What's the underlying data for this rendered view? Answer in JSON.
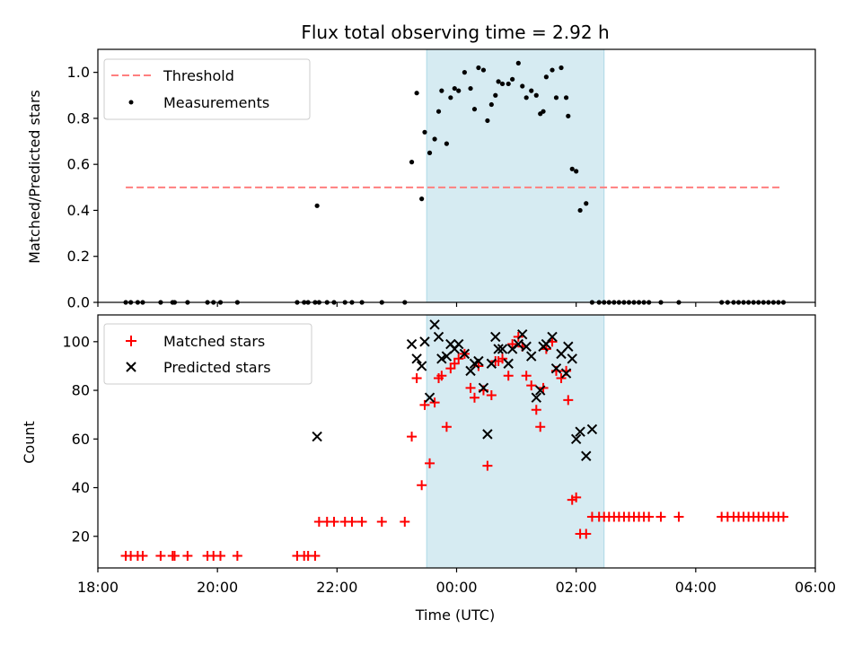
{
  "chart_data": [
    {
      "type": "scatter",
      "title": "Flux total observing time = 2.92 h",
      "ylabel": "Matched/Predicted stars",
      "xlim": [
        "18:00",
        "06:00"
      ],
      "ylim": [
        0,
        1.1
      ],
      "yticks": [
        "0.0",
        "0.2",
        "0.4",
        "0.6",
        "0.8",
        "1.0"
      ],
      "grid": false,
      "legend_position": "top-left",
      "highlight_span": {
        "start": "23:30",
        "end": "02:28",
        "color": "#add8e6"
      },
      "series": [
        {
          "name": "Threshold",
          "style": "dashed-line",
          "color": "#ff7f7f",
          "points": [
            [
              "18:28",
              0.5
            ],
            [
              "05:26",
              0.5
            ]
          ]
        },
        {
          "name": "Measurements",
          "style": "dot",
          "color": "#000000",
          "points": [
            [
              "18:28",
              0
            ],
            [
              "18:33",
              0
            ],
            [
              "18:40",
              0
            ],
            [
              "18:45",
              0
            ],
            [
              "19:03",
              0
            ],
            [
              "19:15",
              0
            ],
            [
              "19:17",
              0
            ],
            [
              "19:30",
              0
            ],
            [
              "19:50",
              0
            ],
            [
              "19:56",
              0
            ],
            [
              "20:03",
              0
            ],
            [
              "20:20",
              0
            ],
            [
              "21:20",
              0
            ],
            [
              "21:27",
              0
            ],
            [
              "21:31",
              0
            ],
            [
              "21:38",
              0
            ],
            [
              "21:42",
              0
            ],
            [
              "21:50",
              0
            ],
            [
              "21:57",
              0
            ],
            [
              "22:08",
              0
            ],
            [
              "22:15",
              0
            ],
            [
              "22:25",
              0
            ],
            [
              "22:45",
              0
            ],
            [
              "23:08",
              0
            ],
            [
              "21:40",
              0.42
            ],
            [
              "23:15",
              0.61
            ],
            [
              "23:20",
              0.91
            ],
            [
              "23:25",
              0.45
            ],
            [
              "23:28",
              0.74
            ],
            [
              "23:33",
              0.65
            ],
            [
              "23:38",
              0.71
            ],
            [
              "23:42",
              0.83
            ],
            [
              "23:45",
              0.92
            ],
            [
              "23:50",
              0.69
            ],
            [
              "23:54",
              0.89
            ],
            [
              "23:58",
              0.93
            ],
            [
              "00:02",
              0.92
            ],
            [
              "00:08",
              1.0
            ],
            [
              "00:14",
              0.93
            ],
            [
              "00:18",
              0.84
            ],
            [
              "00:22",
              1.02
            ],
            [
              "00:27",
              1.01
            ],
            [
              "00:31",
              0.79
            ],
            [
              "00:35",
              0.86
            ],
            [
              "00:39",
              0.9
            ],
            [
              "00:42",
              0.96
            ],
            [
              "00:46",
              0.95
            ],
            [
              "00:52",
              0.95
            ],
            [
              "00:56",
              0.97
            ],
            [
              "01:02",
              1.04
            ],
            [
              "01:06",
              0.94
            ],
            [
              "01:10",
              0.89
            ],
            [
              "01:15",
              0.92
            ],
            [
              "01:20",
              0.9
            ],
            [
              "01:24",
              0.82
            ],
            [
              "01:27",
              0.83
            ],
            [
              "01:30",
              0.98
            ],
            [
              "01:36",
              1.01
            ],
            [
              "01:40",
              0.89
            ],
            [
              "01:45",
              1.02
            ],
            [
              "01:50",
              0.89
            ],
            [
              "01:52",
              0.81
            ],
            [
              "01:56",
              0.58
            ],
            [
              "02:00",
              0.57
            ],
            [
              "02:04",
              0.4
            ],
            [
              "02:10",
              0.43
            ],
            [
              "02:16",
              0
            ],
            [
              "02:23",
              0
            ],
            [
              "02:28",
              0
            ],
            [
              "02:33",
              0
            ],
            [
              "02:38",
              0
            ],
            [
              "02:43",
              0
            ],
            [
              "02:48",
              0
            ],
            [
              "02:53",
              0
            ],
            [
              "02:58",
              0
            ],
            [
              "03:03",
              0
            ],
            [
              "03:08",
              0
            ],
            [
              "03:13",
              0
            ],
            [
              "03:25",
              0
            ],
            [
              "03:43",
              0
            ],
            [
              "04:26",
              0
            ],
            [
              "04:32",
              0
            ],
            [
              "04:38",
              0
            ],
            [
              "04:43",
              0
            ],
            [
              "04:48",
              0
            ],
            [
              "04:53",
              0
            ],
            [
              "04:58",
              0
            ],
            [
              "05:03",
              0
            ],
            [
              "05:08",
              0
            ],
            [
              "05:13",
              0
            ],
            [
              "05:18",
              0
            ],
            [
              "05:23",
              0
            ],
            [
              "05:28",
              0
            ]
          ]
        }
      ]
    },
    {
      "type": "scatter",
      "title": "",
      "xlabel": "Time (UTC)",
      "ylabel": "Count",
      "xlim": [
        "18:00",
        "06:00"
      ],
      "xticks": [
        "18:00",
        "20:00",
        "22:00",
        "00:00",
        "02:00",
        "04:00",
        "06:00"
      ],
      "ylim": [
        7,
        111
      ],
      "yticks": [
        "20",
        "40",
        "60",
        "80",
        "100"
      ],
      "grid": false,
      "legend_position": "top-left",
      "highlight_span": {
        "start": "23:30",
        "end": "02:28",
        "color": "#add8e6"
      },
      "series": [
        {
          "name": "Matched stars",
          "style": "plus",
          "color": "#ff0000",
          "points": [
            [
              "18:28",
              12
            ],
            [
              "18:33",
              12
            ],
            [
              "18:40",
              12
            ],
            [
              "18:45",
              12
            ],
            [
              "19:03",
              12
            ],
            [
              "19:15",
              12
            ],
            [
              "19:17",
              12
            ],
            [
              "19:30",
              12
            ],
            [
              "19:50",
              12
            ],
            [
              "19:56",
              12
            ],
            [
              "20:03",
              12
            ],
            [
              "20:20",
              12
            ],
            [
              "21:20",
              12
            ],
            [
              "21:27",
              12
            ],
            [
              "21:31",
              12
            ],
            [
              "21:38",
              12
            ],
            [
              "21:42",
              26
            ],
            [
              "21:50",
              26
            ],
            [
              "21:57",
              26
            ],
            [
              "22:08",
              26
            ],
            [
              "22:15",
              26
            ],
            [
              "22:25",
              26
            ],
            [
              "22:45",
              26
            ],
            [
              "23:08",
              26
            ],
            [
              "23:15",
              61
            ],
            [
              "23:20",
              85
            ],
            [
              "23:25",
              41
            ],
            [
              "23:28",
              74
            ],
            [
              "23:33",
              50
            ],
            [
              "23:38",
              75
            ],
            [
              "23:42",
              85
            ],
            [
              "23:45",
              86
            ],
            [
              "23:50",
              65
            ],
            [
              "23:54",
              89
            ],
            [
              "23:58",
              91
            ],
            [
              "00:02",
              93
            ],
            [
              "00:08",
              95
            ],
            [
              "00:14",
              81
            ],
            [
              "00:18",
              77
            ],
            [
              "00:22",
              90
            ],
            [
              "00:27",
              80
            ],
            [
              "00:31",
              49
            ],
            [
              "00:35",
              78
            ],
            [
              "00:39",
              92
            ],
            [
              "00:42",
              92
            ],
            [
              "00:46",
              93
            ],
            [
              "00:52",
              86
            ],
            [
              "00:56",
              99
            ],
            [
              "01:02",
              102
            ],
            [
              "01:06",
              98
            ],
            [
              "01:10",
              86
            ],
            [
              "01:15",
              82
            ],
            [
              "01:20",
              72
            ],
            [
              "01:24",
              65
            ],
            [
              "01:27",
              81
            ],
            [
              "01:30",
              97
            ],
            [
              "01:36",
              100
            ],
            [
              "01:40",
              88
            ],
            [
              "01:45",
              85
            ],
            [
              "01:50",
              88
            ],
            [
              "01:52",
              76
            ],
            [
              "01:56",
              35
            ],
            [
              "02:00",
              36
            ],
            [
              "02:04",
              21
            ],
            [
              "02:10",
              21
            ],
            [
              "02:16",
              28
            ],
            [
              "02:23",
              28
            ],
            [
              "02:28",
              28
            ],
            [
              "02:33",
              28
            ],
            [
              "02:38",
              28
            ],
            [
              "02:43",
              28
            ],
            [
              "02:48",
              28
            ],
            [
              "02:53",
              28
            ],
            [
              "02:58",
              28
            ],
            [
              "03:03",
              28
            ],
            [
              "03:08",
              28
            ],
            [
              "03:13",
              28
            ],
            [
              "03:25",
              28
            ],
            [
              "03:43",
              28
            ],
            [
              "04:26",
              28
            ],
            [
              "04:32",
              28
            ],
            [
              "04:38",
              28
            ],
            [
              "04:43",
              28
            ],
            [
              "04:48",
              28
            ],
            [
              "04:53",
              28
            ],
            [
              "04:58",
              28
            ],
            [
              "05:03",
              28
            ],
            [
              "05:08",
              28
            ],
            [
              "05:13",
              28
            ],
            [
              "05:18",
              28
            ],
            [
              "05:23",
              28
            ],
            [
              "05:28",
              28
            ]
          ]
        },
        {
          "name": "Predicted stars",
          "style": "x",
          "color": "#000000",
          "points": [
            [
              "21:40",
              61
            ],
            [
              "23:15",
              99
            ],
            [
              "23:20",
              93
            ],
            [
              "23:25",
              90
            ],
            [
              "23:28",
              100
            ],
            [
              "23:33",
              77
            ],
            [
              "23:38",
              107
            ],
            [
              "23:42",
              102
            ],
            [
              "23:45",
              93
            ],
            [
              "23:50",
              94
            ],
            [
              "23:54",
              99
            ],
            [
              "23:58",
              97
            ],
            [
              "00:02",
              99
            ],
            [
              "00:08",
              95
            ],
            [
              "00:14",
              88
            ],
            [
              "00:18",
              91
            ],
            [
              "00:22",
              92
            ],
            [
              "00:27",
              81
            ],
            [
              "00:31",
              62
            ],
            [
              "00:35",
              91
            ],
            [
              "00:39",
              102
            ],
            [
              "00:42",
              97
            ],
            [
              "00:46",
              97
            ],
            [
              "00:52",
              91
            ],
            [
              "00:56",
              97
            ],
            [
              "01:02",
              99
            ],
            [
              "01:06",
              103
            ],
            [
              "01:10",
              98
            ],
            [
              "01:15",
              94
            ],
            [
              "01:20",
              77
            ],
            [
              "01:24",
              80
            ],
            [
              "01:27",
              98
            ],
            [
              "01:30",
              99
            ],
            [
              "01:36",
              102
            ],
            [
              "01:40",
              89
            ],
            [
              "01:45",
              95
            ],
            [
              "01:50",
              87
            ],
            [
              "01:52",
              98
            ],
            [
              "01:56",
              93
            ],
            [
              "02:00",
              60
            ],
            [
              "02:04",
              63
            ],
            [
              "02:10",
              53
            ],
            [
              "02:16",
              64
            ]
          ]
        }
      ]
    }
  ]
}
